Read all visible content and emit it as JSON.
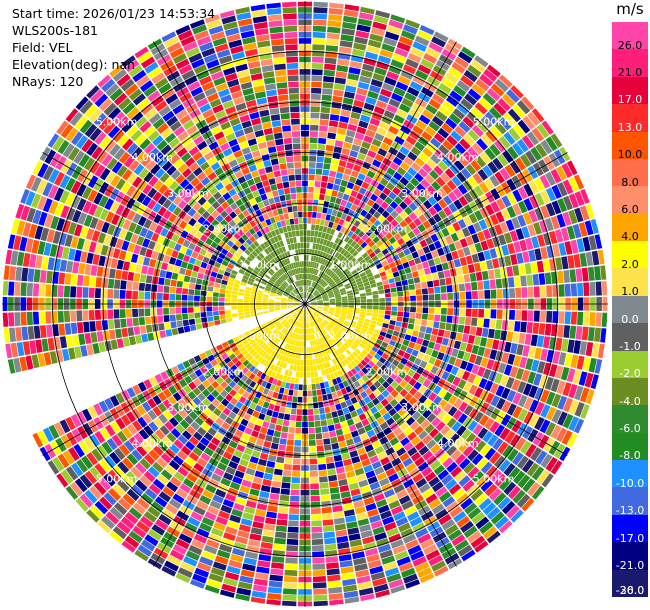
{
  "header": {
    "start_time": "Start time: 2026/01/23 14:53:34",
    "instrument": "WLS200s-181",
    "field": "Field: VEL",
    "elevation": "Elevation(deg): nan",
    "nrays": "NRays: 120"
  },
  "chart_data": {
    "type": "heatmap",
    "projection": "polar-ppi",
    "title": "",
    "range_rings": [
      {
        "label": "1.00km",
        "range_km": 1.0
      },
      {
        "label": "2.00km",
        "range_km": 2.0
      },
      {
        "label": "3.00km",
        "range_km": 3.0
      },
      {
        "label": "4.00km",
        "range_km": 4.0
      },
      {
        "label": "5.00km",
        "range_km": 5.0
      }
    ],
    "max_range_km": 6.0,
    "n_rays": 120,
    "colorbar": {
      "unit": "m/s",
      "ticks": [
        "26.0",
        "21.0",
        "17.0",
        "13.0",
        "10.0",
        "8.0",
        "6.0",
        "4.0",
        "2.0",
        "1.0",
        "0.0",
        "-1.0",
        "-2.0",
        "-4.0",
        "-6.0",
        "-8.0",
        "-10.0",
        "-13.0",
        "-17.0",
        "-21.0",
        "-26.0",
        "-30.0"
      ],
      "colors": [
        "#ff44aa",
        "#ff1f7a",
        "#e8003a",
        "#ff2a2a",
        "#ff5500",
        "#ff6e4a",
        "#ff8f6a",
        "#ffa500",
        "#ffff00",
        "#ffe34d",
        "#808890",
        "#606060",
        "#9acd32",
        "#6b8e23",
        "#2e8b2e",
        "#228b22",
        "#1e90ff",
        "#4169e1",
        "#0000ff",
        "#000080",
        "#191970"
      ]
    },
    "near_field": {
      "range_km": 1.5,
      "toward_color": "#6b9a2a",
      "away_color": "#ffe600"
    }
  }
}
